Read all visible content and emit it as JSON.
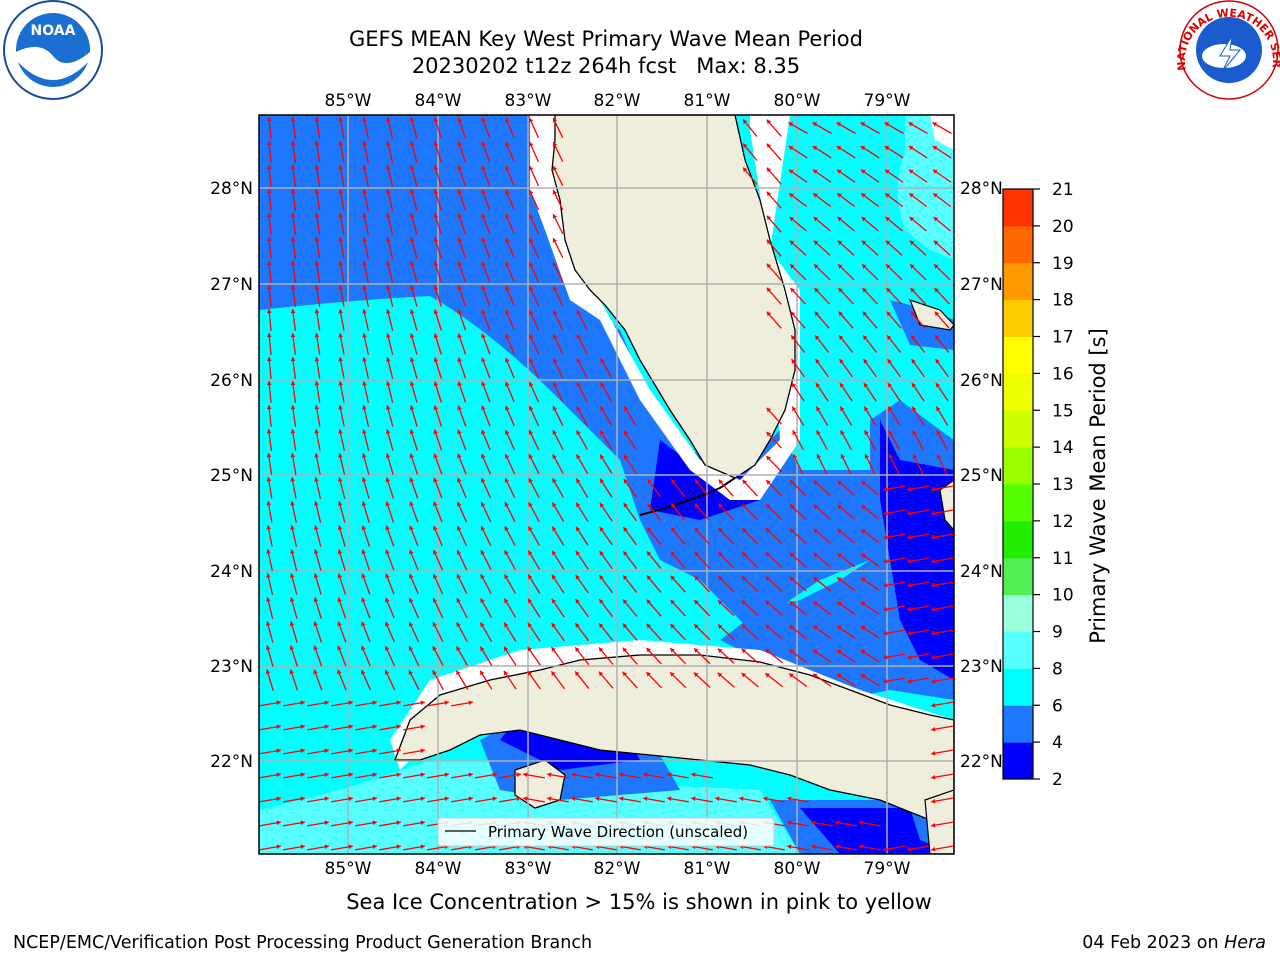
{
  "title": {
    "line1": "GEFS MEAN Key West Primary Wave Mean Period",
    "line2": "20230202 t12z 264h fcst   Max: 8.35"
  },
  "logos": {
    "left": {
      "name": "noaa-logo",
      "text": "NOAA"
    },
    "right": {
      "name": "national-weather-service-logo",
      "text": "NATIONAL WEATHER SERVICE"
    }
  },
  "map": {
    "lon_labels": [
      "85°W",
      "84°W",
      "83°W",
      "82°W",
      "81°W",
      "80°W",
      "79°W"
    ],
    "lat_labels": [
      "28°N",
      "27°N",
      "26°N",
      "25°N",
      "24°N",
      "23°N",
      "22°N"
    ],
    "lon_range": [
      -86.0,
      -78.3
    ],
    "lat_range": [
      21.0,
      28.8
    ],
    "legend_label": "Primary Wave Direction (unscaled)",
    "land_color": "#efeddc",
    "arrow_color": "#ff0000",
    "grid": true
  },
  "colorbar": {
    "title": "Primary Wave Mean Period [s]",
    "ticks": [
      "2",
      "4",
      "6",
      "8",
      "9",
      "10",
      "11",
      "12",
      "13",
      "14",
      "15",
      "16",
      "17",
      "18",
      "19",
      "20",
      "21"
    ],
    "colors": [
      "#0000ff",
      "#1e78ff",
      "#00ffff",
      "#55ffff",
      "#99ffdd",
      "#55ee55",
      "#22ee00",
      "#55ff00",
      "#99ff00",
      "#ccff00",
      "#eeff00",
      "#ffff00",
      "#ffcc00",
      "#ff9900",
      "#ff6600",
      "#ff3300",
      "#ff0000"
    ]
  },
  "note": "Sea Ice Concentration > 15% is shown in pink to yellow",
  "footer": {
    "left": "NCEP/EMC/Verification Post Processing Product Generation Branch",
    "right_prefix": "04 Feb 2023 on ",
    "right_host": "Hera"
  }
}
